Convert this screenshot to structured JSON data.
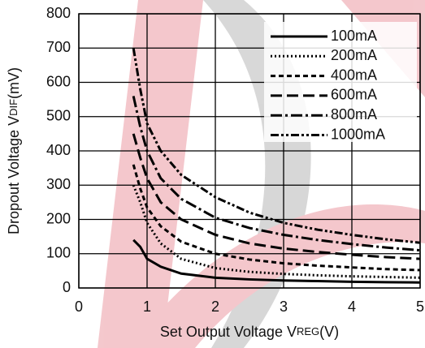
{
  "chart_data": {
    "type": "line",
    "xlabel": {
      "main": "Set Output Voltage V",
      "sub": "REG",
      "unit": "(V)"
    },
    "ylabel": {
      "main": "Dropout Voltage V",
      "sub": "DIF",
      "unit": "(mV)"
    },
    "x": [
      0.8,
      0.9,
      1,
      1.2,
      1.5,
      2,
      2.5,
      3,
      3.5,
      4,
      4.5,
      5
    ],
    "series": [
      {
        "name": "100mA",
        "color": "#000000",
        "style": "solid",
        "values": [
          140,
          120,
          85,
          62,
          42,
          30,
          25,
          22,
          20,
          18,
          17,
          16
        ]
      },
      {
        "name": "200mA",
        "color": "#000000",
        "style": "dotted",
        "values": [
          300,
          250,
          190,
          130,
          85,
          58,
          47,
          41,
          37,
          34,
          32,
          30
        ]
      },
      {
        "name": "400mA",
        "color": "#000000",
        "style": "dashed",
        "values": [
          360,
          290,
          235,
          180,
          135,
          100,
          83,
          72,
          65,
          60,
          55,
          52
        ]
      },
      {
        "name": "600mA",
        "color": "#000000",
        "style": "long-dash",
        "values": [
          450,
          380,
          320,
          250,
          200,
          155,
          130,
          115,
          105,
          97,
          90,
          85
        ]
      },
      {
        "name": "800mA",
        "color": "#000000",
        "style": "dash-dot",
        "values": [
          560,
          470,
          400,
          320,
          260,
          205,
          175,
          155,
          140,
          128,
          118,
          110
        ]
      },
      {
        "name": "1000mA",
        "color": "#000000",
        "style": "dash-dot-dot",
        "values": [
          700,
          580,
          480,
          400,
          330,
          265,
          220,
          190,
          170,
          155,
          142,
          132
        ]
      }
    ],
    "xlim": [
      0,
      5
    ],
    "xticks": [
      0,
      1,
      2,
      3,
      4,
      5
    ],
    "ylim": [
      0,
      800
    ],
    "yticks": [
      0,
      100,
      200,
      300,
      400,
      500,
      600,
      700,
      800
    ],
    "grid": true,
    "legend": "upper right"
  }
}
